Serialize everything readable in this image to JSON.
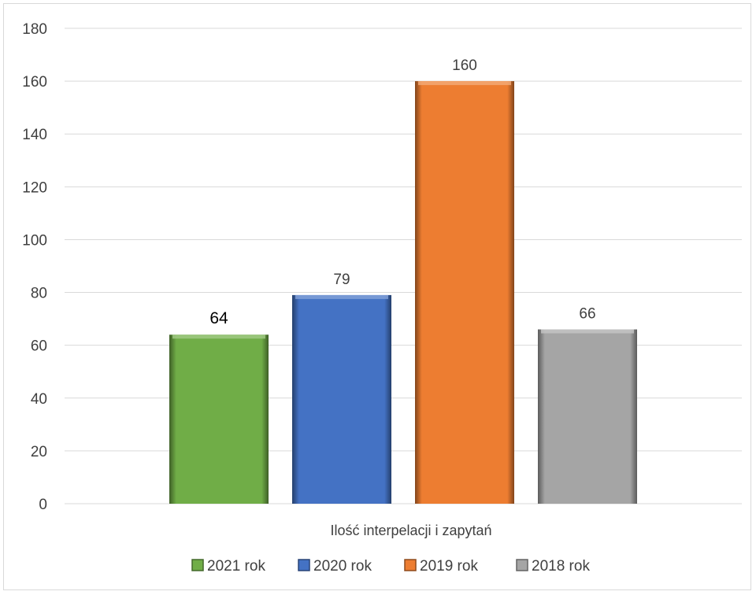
{
  "chart_data": {
    "type": "bar",
    "categories": [
      "Ilość interpelacji i zapytań"
    ],
    "xlabel": "Ilość interpelacji i zapytań",
    "ylabel": "",
    "ylim": [
      0,
      180
    ],
    "yticks": [
      0,
      20,
      40,
      60,
      80,
      100,
      120,
      140,
      160,
      180
    ],
    "grid": true,
    "legend_position": "bottom",
    "series": [
      {
        "name": "2021 rok",
        "values": [
          64
        ],
        "color": "#70ad47"
      },
      {
        "name": "2020 rok",
        "values": [
          79
        ],
        "color": "#4472c4"
      },
      {
        "name": "2019 rok",
        "values": [
          160
        ],
        "color": "#ed7d31"
      },
      {
        "name": "2018 rok",
        "values": [
          66
        ],
        "color": "#a5a5a5"
      }
    ]
  }
}
